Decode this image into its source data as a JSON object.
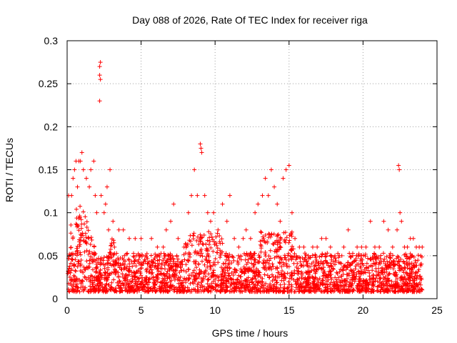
{
  "chart_data": {
    "type": "scatter",
    "title": "Day 088 of 2026, Rate Of TEC Index for receiver riga",
    "xlabel": "GPS time / hours",
    "ylabel": "ROTI / TECUs",
    "xlim": [
      0,
      25
    ],
    "ylim": [
      0,
      0.3
    ],
    "xticks": [
      0,
      5,
      10,
      15,
      20,
      25
    ],
    "xtick_labels": [
      "0",
      "5",
      "10",
      "15",
      "20",
      "25"
    ],
    "yticks": [
      0,
      0.05,
      0.1,
      0.15,
      0.2,
      0.25,
      0.3
    ],
    "ytick_labels": [
      "0",
      "0.05",
      "0.1",
      "0.15",
      "0.2",
      "0.25",
      "0.3"
    ],
    "grid": true,
    "marker": "+",
    "color": "#ff0000",
    "series": [
      {
        "name": "ROTI",
        "points": [
          [
            0.1,
            0.12
          ],
          [
            0.3,
            0.12
          ],
          [
            0.4,
            0.14
          ],
          [
            0.5,
            0.15
          ],
          [
            0.6,
            0.16
          ],
          [
            0.7,
            0.13
          ],
          [
            0.8,
            0.16
          ],
          [
            0.9,
            0.16
          ],
          [
            1.0,
            0.17
          ],
          [
            1.1,
            0.15
          ],
          [
            1.3,
            0.14
          ],
          [
            1.5,
            0.13
          ],
          [
            1.6,
            0.15
          ],
          [
            1.8,
            0.16
          ],
          [
            1.9,
            0.12
          ],
          [
            2.0,
            0.1
          ],
          [
            2.2,
            0.27
          ],
          [
            2.25,
            0.275
          ],
          [
            2.2,
            0.26
          ],
          [
            2.25,
            0.255
          ],
          [
            2.2,
            0.23
          ],
          [
            2.3,
            0.12
          ],
          [
            2.5,
            0.1
          ],
          [
            2.6,
            0.11
          ],
          [
            2.7,
            0.13
          ],
          [
            2.8,
            0.08
          ],
          [
            2.9,
            0.15
          ],
          [
            3.1,
            0.09
          ],
          [
            3.2,
            0.06
          ],
          [
            3.5,
            0.08
          ],
          [
            3.8,
            0.08
          ],
          [
            4.2,
            0.07
          ],
          [
            4.6,
            0.07
          ],
          [
            5.0,
            0.07
          ],
          [
            5.3,
            0.05
          ],
          [
            5.7,
            0.07
          ],
          [
            6.1,
            0.06
          ],
          [
            6.5,
            0.06
          ],
          [
            6.7,
            0.08
          ],
          [
            7.0,
            0.09
          ],
          [
            7.2,
            0.11
          ],
          [
            7.5,
            0.07
          ],
          [
            7.9,
            0.06
          ],
          [
            8.2,
            0.1
          ],
          [
            8.4,
            0.12
          ],
          [
            8.6,
            0.15
          ],
          [
            8.8,
            0.12
          ],
          [
            9.0,
            0.18
          ],
          [
            9.05,
            0.175
          ],
          [
            9.1,
            0.17
          ],
          [
            9.3,
            0.12
          ],
          [
            9.5,
            0.1
          ],
          [
            9.7,
            0.09
          ],
          [
            9.9,
            0.1
          ],
          [
            10.2,
            0.08
          ],
          [
            10.5,
            0.11
          ],
          [
            10.8,
            0.09
          ],
          [
            11.0,
            0.12
          ],
          [
            11.3,
            0.07
          ],
          [
            11.6,
            0.06
          ],
          [
            11.9,
            0.07
          ],
          [
            12.1,
            0.08
          ],
          [
            12.4,
            0.07
          ],
          [
            12.7,
            0.1
          ],
          [
            12.9,
            0.11
          ],
          [
            13.2,
            0.12
          ],
          [
            13.4,
            0.14
          ],
          [
            13.6,
            0.12
          ],
          [
            13.8,
            0.15
          ],
          [
            14.0,
            0.13
          ],
          [
            14.2,
            0.11
          ],
          [
            14.4,
            0.09
          ],
          [
            14.6,
            0.14
          ],
          [
            14.8,
            0.15
          ],
          [
            15.0,
            0.155
          ],
          [
            15.2,
            0.1
          ],
          [
            15.4,
            0.07
          ],
          [
            15.7,
            0.06
          ],
          [
            16.0,
            0.06
          ],
          [
            16.3,
            0.05
          ],
          [
            16.6,
            0.06
          ],
          [
            16.9,
            0.06
          ],
          [
            17.2,
            0.07
          ],
          [
            17.5,
            0.07
          ],
          [
            17.8,
            0.06
          ],
          [
            18.1,
            0.05
          ],
          [
            18.4,
            0.05
          ],
          [
            18.7,
            0.06
          ],
          [
            19.0,
            0.08
          ],
          [
            19.3,
            0.05
          ],
          [
            19.6,
            0.06
          ],
          [
            19.9,
            0.06
          ],
          [
            20.2,
            0.06
          ],
          [
            20.5,
            0.09
          ],
          [
            20.8,
            0.06
          ],
          [
            21.1,
            0.06
          ],
          [
            21.4,
            0.09
          ],
          [
            21.7,
            0.08
          ],
          [
            22.0,
            0.06
          ],
          [
            22.3,
            0.08
          ],
          [
            22.4,
            0.155
          ],
          [
            22.45,
            0.15
          ],
          [
            22.5,
            0.1
          ],
          [
            22.6,
            0.09
          ],
          [
            22.8,
            0.06
          ],
          [
            23.0,
            0.06
          ],
          [
            23.2,
            0.07
          ],
          [
            23.4,
            0.07
          ],
          [
            23.6,
            0.06
          ],
          [
            23.8,
            0.06
          ],
          [
            23.9,
            0.05
          ],
          [
            24.0,
            0.06
          ]
        ]
      }
    ]
  }
}
